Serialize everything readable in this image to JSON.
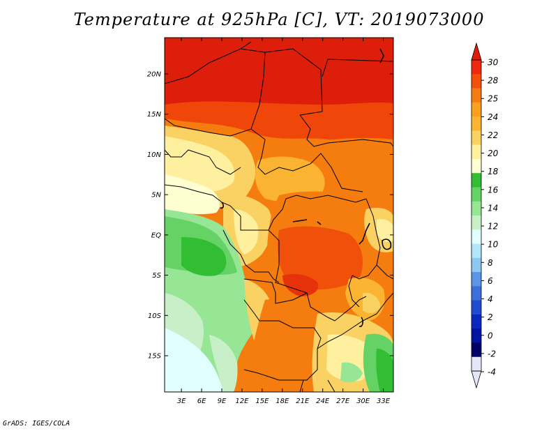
{
  "title": "Temperature at 925hPa [C], VT: 2019073000",
  "credit": "GrADS: IGES/COLA",
  "map": {
    "lat_ticks": [
      "20N",
      "15N",
      "10N",
      "5N",
      "EQ",
      "5S",
      "10S",
      "15S"
    ],
    "lat_values": [
      20,
      15,
      10,
      5,
      0,
      -5,
      -10,
      -15
    ],
    "lon_ticks": [
      "3E",
      "6E",
      "9E",
      "12E",
      "15E",
      "18E",
      "21E",
      "24E",
      "27E",
      "30E",
      "33E"
    ],
    "lon_values": [
      3,
      6,
      9,
      12,
      15,
      18,
      21,
      24,
      27,
      30,
      33
    ],
    "lon_range": [
      0.5,
      34.5
    ],
    "lat_range": [
      -19.5,
      24.5
    ]
  },
  "colorbar": {
    "labels": [
      "30",
      "28",
      "25",
      "24",
      "22",
      "20",
      "18",
      "16",
      "14",
      "12",
      "10",
      "8",
      "6",
      "4",
      "2",
      "0",
      "-2",
      "-4"
    ],
    "colors": [
      "#ffffff",
      "#ffff66"
    ],
    "bands_top_to_bottom": [
      "#f0280f",
      "#f5500a",
      "#f57d0f",
      "#faa01e",
      "#fab432",
      "#fad264",
      "#fff0a0",
      "#ffffd2",
      "#32be32",
      "#64d264",
      "#96e696",
      "#c8f0c8",
      "#e1ffff",
      "#b4e6fa",
      "#8cc8f0",
      "#5a96e6",
      "#3c6edc",
      "#1e4bd2",
      "#0a28be",
      "#0014a0",
      "#000064",
      "#e6e6fa"
    ],
    "top_arrow_color": "#dc1e0a",
    "bottom_arrow_color": "#e6e6fa"
  }
}
